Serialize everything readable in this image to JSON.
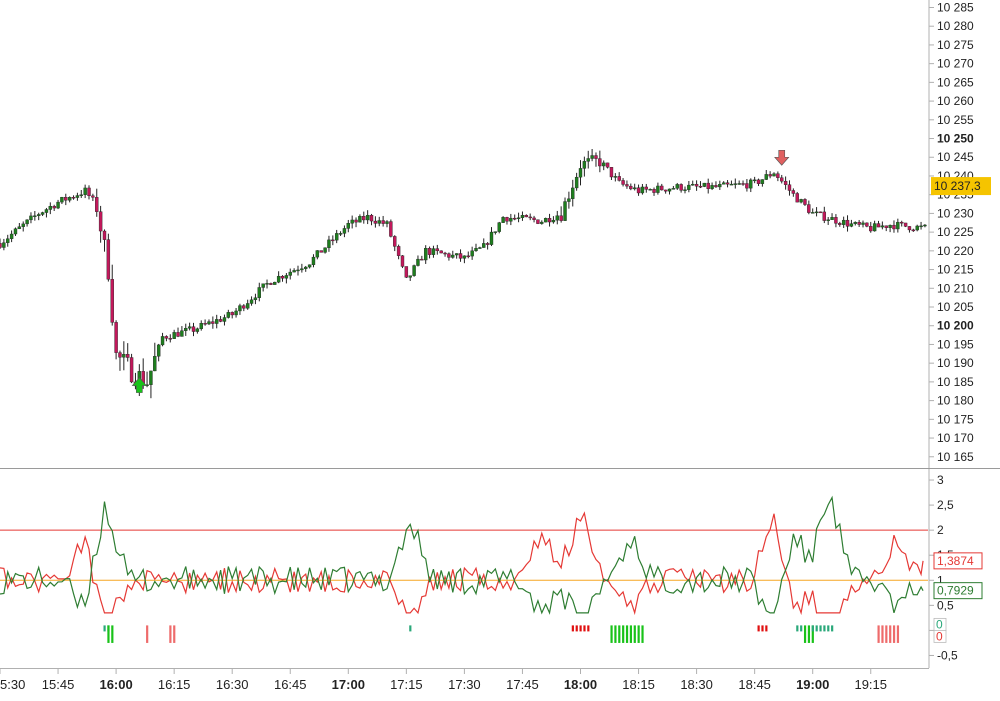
{
  "chart_data": [
    {
      "type": "candlestick",
      "title": "",
      "y_ticks": [
        "10 285",
        "10 280",
        "10 275",
        "10 270",
        "10 265",
        "10 260",
        "10 255",
        "10 250",
        "10 245",
        "10 240",
        "10 235",
        "10 230",
        "10 225",
        "10 220",
        "10 215",
        "10 210",
        "10 205",
        "10 200",
        "10 195",
        "10 190",
        "10 185",
        "10 180",
        "10 175",
        "10 170",
        "10 165"
      ],
      "y_ticks_bold": [
        "10 250",
        "10 200"
      ],
      "ylim": [
        10162,
        10287
      ],
      "last_price_label": "10 237,3",
      "last_price": 10237.3,
      "up_color": "#1e7e1e",
      "down_color": "#c2185b",
      "close_anchors": [
        {
          "t": "15:30",
          "v": 10222
        },
        {
          "t": "15:40",
          "v": 10230
        },
        {
          "t": "15:45",
          "v": 10233
        },
        {
          "t": "15:52",
          "v": 10236
        },
        {
          "t": "15:55",
          "v": 10232
        },
        {
          "t": "15:58",
          "v": 10215
        },
        {
          "t": "16:00",
          "v": 10192
        },
        {
          "t": "16:05",
          "v": 10187
        },
        {
          "t": "16:08",
          "v": 10185
        },
        {
          "t": "16:12",
          "v": 10197
        },
        {
          "t": "16:20",
          "v": 10199
        },
        {
          "t": "16:30",
          "v": 10203
        },
        {
          "t": "16:40",
          "v": 10212
        },
        {
          "t": "16:50",
          "v": 10217
        },
        {
          "t": "17:00",
          "v": 10227
        },
        {
          "t": "17:05",
          "v": 10229
        },
        {
          "t": "17:10",
          "v": 10227
        },
        {
          "t": "17:15",
          "v": 10212
        },
        {
          "t": "17:20",
          "v": 10220
        },
        {
          "t": "17:30",
          "v": 10218
        },
        {
          "t": "17:35",
          "v": 10221
        },
        {
          "t": "17:40",
          "v": 10229
        },
        {
          "t": "17:50",
          "v": 10228
        },
        {
          "t": "17:55",
          "v": 10230
        },
        {
          "t": "18:00",
          "v": 10243
        },
        {
          "t": "18:05",
          "v": 10244
        },
        {
          "t": "18:10",
          "v": 10238
        },
        {
          "t": "18:15",
          "v": 10236
        },
        {
          "t": "18:25",
          "v": 10237
        },
        {
          "t": "18:35",
          "v": 10237
        },
        {
          "t": "18:45",
          "v": 10238
        },
        {
          "t": "18:50",
          "v": 10241
        },
        {
          "t": "18:55",
          "v": 10235
        },
        {
          "t": "19:00",
          "v": 10230
        },
        {
          "t": "19:10",
          "v": 10227
        },
        {
          "t": "19:15",
          "v": 10226
        },
        {
          "t": "19:20",
          "v": 10227
        },
        {
          "t": "19:30",
          "v": 10226
        }
      ],
      "signals": [
        {
          "type": "buy",
          "t": "16:06",
          "v": 10184,
          "color": "#19c219"
        },
        {
          "type": "sell",
          "t": "18:52",
          "v": 10245,
          "color": "#e06060"
        }
      ]
    },
    {
      "type": "line",
      "title": "",
      "y_ticks": [
        "3",
        "2,5",
        "2",
        "1,5",
        "1",
        "0,5",
        "0",
        "-0,5"
      ],
      "ylim": [
        -0.75,
        3.2
      ],
      "reference_lines": [
        {
          "value": 2,
          "color": "#e53935"
        },
        {
          "value": 1,
          "color": "#f5a623"
        }
      ],
      "series": [
        {
          "color": "#e53935",
          "last_value": 1.3874,
          "last_label": "1,3874"
        },
        {
          "color": "#2e7d32",
          "last_value": 0.7929,
          "last_label": "0,7929"
        }
      ],
      "peaks_green": [
        {
          "t": "15:57",
          "v": 2.55
        },
        {
          "t": "17:16",
          "v": 2.15
        },
        {
          "t": "18:13",
          "v": 1.85
        },
        {
          "t": "18:55",
          "v": 2.0
        },
        {
          "t": "19:04",
          "v": 2.75
        }
      ],
      "peaks_red": [
        {
          "t": "15:52",
          "v": 1.95
        },
        {
          "t": "17:50",
          "v": 1.9
        },
        {
          "t": "18:00",
          "v": 2.4
        },
        {
          "t": "18:50",
          "v": 2.3
        },
        {
          "t": "19:22",
          "v": 1.85
        }
      ],
      "zero_labels": [
        {
          "text": "0",
          "color": "#2aa87a"
        },
        {
          "text": "0",
          "color": "#e53935"
        }
      ],
      "signal_bars": [
        {
          "start": "15:57",
          "end": "15:58",
          "color": "#2aa87a"
        },
        {
          "start": "15:58",
          "end": "15:59",
          "color": "#19c219"
        },
        {
          "start": "16:08",
          "end": "16:08",
          "color": "#ee6b6b"
        },
        {
          "start": "16:14",
          "end": "16:15",
          "color": "#ee6b6b"
        },
        {
          "start": "17:16",
          "end": "17:16",
          "color": "#2aa87a"
        },
        {
          "start": "17:58",
          "end": "18:02",
          "color": "#e01010"
        },
        {
          "start": "18:08",
          "end": "18:16",
          "color": "#19c219"
        },
        {
          "start": "18:46",
          "end": "18:48",
          "color": "#e01010"
        },
        {
          "start": "18:56",
          "end": "18:57",
          "color": "#2aa87a"
        },
        {
          "start": "18:58",
          "end": "19:00",
          "color": "#19c219"
        },
        {
          "start": "19:00",
          "end": "19:05",
          "color": "#2aa87a"
        },
        {
          "start": "19:17",
          "end": "19:22",
          "color": "#ee6b6b"
        }
      ]
    }
  ],
  "x_axis": {
    "labels": [
      {
        "text": "5:30",
        "t": "15:30",
        "bold": false
      },
      {
        "text": "15:45",
        "t": "15:45",
        "bold": false
      },
      {
        "text": "16:00",
        "t": "16:00",
        "bold": true
      },
      {
        "text": "16:15",
        "t": "16:15",
        "bold": false
      },
      {
        "text": "16:30",
        "t": "16:30",
        "bold": false
      },
      {
        "text": "16:45",
        "t": "16:45",
        "bold": false
      },
      {
        "text": "17:00",
        "t": "17:00",
        "bold": true
      },
      {
        "text": "17:15",
        "t": "17:15",
        "bold": false
      },
      {
        "text": "17:30",
        "t": "17:30",
        "bold": false
      },
      {
        "text": "17:45",
        "t": "17:45",
        "bold": false
      },
      {
        "text": "18:00",
        "t": "18:00",
        "bold": true
      },
      {
        "text": "18:15",
        "t": "18:15",
        "bold": false
      },
      {
        "text": "18:30",
        "t": "18:30",
        "bold": false
      },
      {
        "text": "18:45",
        "t": "18:45",
        "bold": false
      },
      {
        "text": "19:00",
        "t": "19:00",
        "bold": true
      },
      {
        "text": "19:15",
        "t": "19:15",
        "bold": false
      }
    ]
  },
  "colors": {
    "axis": "#b0b0b0",
    "last_price_bg": "#f5c400",
    "divider": "#9a9a9a"
  }
}
